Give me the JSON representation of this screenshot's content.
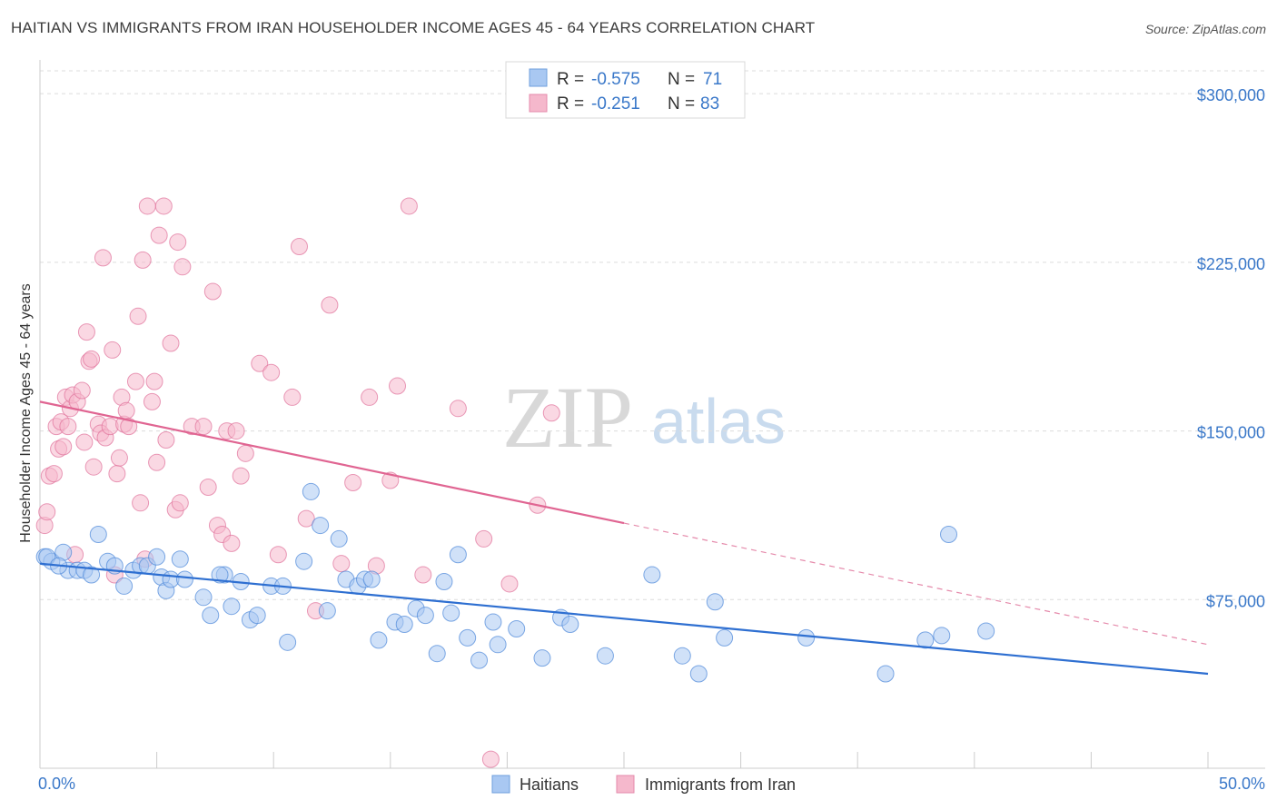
{
  "title": "HAITIAN VS IMMIGRANTS FROM IRAN HOUSEHOLDER INCOME AGES 45 - 64 YEARS CORRELATION CHART",
  "source": "Source: ZipAtlas.com",
  "watermark": {
    "zip": "ZIP",
    "atlas": "atlas"
  },
  "legend_top": {
    "rows": [
      {
        "r_label": "R = ",
        "r_value": "-0.575",
        "n_label": "N = ",
        "n_value": "71",
        "color": "#a9c8f2"
      },
      {
        "r_label": "R = ",
        "r_value": "-0.251",
        "n_label": "N = ",
        "n_value": "83",
        "color": "#f5b8cc"
      }
    ]
  },
  "legend_bottom": {
    "items": [
      {
        "label": "Haitians",
        "color": "#a9c8f2"
      },
      {
        "label": "Immigrants from Iran",
        "color": "#f5b8cc"
      }
    ]
  },
  "chart_data": {
    "type": "scatter",
    "title": "HAITIAN VS IMMIGRANTS FROM IRAN HOUSEHOLDER INCOME AGES 45 - 64 YEARS CORRELATION CHART",
    "xlabel": "",
    "ylabel": "Householder Income Ages 45 - 64 years",
    "xlim": [
      0,
      50
    ],
    "ylim": [
      0,
      315000
    ],
    "x_tick_labels": [
      "0.0%",
      "50.0%"
    ],
    "y_ticks": [
      75000,
      150000,
      225000,
      300000
    ],
    "y_tick_labels": [
      "$75,000",
      "$150,000",
      "$225,000",
      "$300,000"
    ],
    "grid": true,
    "legend_position": "top-center",
    "series": [
      {
        "name": "Haitians",
        "color": "#4a86d8",
        "fill": "#a9c8f2",
        "points": [
          [
            0.2,
            94000
          ],
          [
            0.5,
            92000
          ],
          [
            1.0,
            96000
          ],
          [
            1.2,
            88000
          ],
          [
            1.6,
            88000
          ],
          [
            1.9,
            88000
          ],
          [
            2.2,
            86000
          ],
          [
            2.5,
            104000
          ],
          [
            2.9,
            92000
          ],
          [
            3.2,
            90000
          ],
          [
            3.6,
            81000
          ],
          [
            4.0,
            88000
          ],
          [
            4.3,
            90000
          ],
          [
            4.6,
            90000
          ],
          [
            5.0,
            94000
          ],
          [
            5.2,
            85000
          ],
          [
            5.4,
            79000
          ],
          [
            5.6,
            84000
          ],
          [
            6.0,
            93000
          ],
          [
            6.2,
            84000
          ],
          [
            7.0,
            76000
          ],
          [
            7.3,
            68000
          ],
          [
            7.9,
            86000
          ],
          [
            8.2,
            72000
          ],
          [
            8.6,
            83000
          ],
          [
            9.0,
            66000
          ],
          [
            9.3,
            68000
          ],
          [
            9.9,
            81000
          ],
          [
            10.4,
            81000
          ],
          [
            10.6,
            56000
          ],
          [
            11.3,
            92000
          ],
          [
            11.6,
            123000
          ],
          [
            12.0,
            108000
          ],
          [
            12.3,
            70000
          ],
          [
            12.8,
            102000
          ],
          [
            13.1,
            84000
          ],
          [
            13.6,
            81000
          ],
          [
            13.9,
            84000
          ],
          [
            14.2,
            84000
          ],
          [
            14.5,
            57000
          ],
          [
            15.2,
            65000
          ],
          [
            15.6,
            64000
          ],
          [
            16.1,
            71000
          ],
          [
            16.5,
            68000
          ],
          [
            17.0,
            51000
          ],
          [
            17.3,
            83000
          ],
          [
            17.6,
            69000
          ],
          [
            17.9,
            95000
          ],
          [
            18.3,
            58000
          ],
          [
            18.8,
            48000
          ],
          [
            19.4,
            65000
          ],
          [
            19.6,
            55000
          ],
          [
            20.4,
            62000
          ],
          [
            21.5,
            49000
          ],
          [
            22.3,
            67000
          ],
          [
            22.7,
            64000
          ],
          [
            24.2,
            50000
          ],
          [
            26.2,
            86000
          ],
          [
            27.5,
            50000
          ],
          [
            28.2,
            42000
          ],
          [
            28.9,
            74000
          ],
          [
            29.3,
            58000
          ],
          [
            32.8,
            58000
          ],
          [
            36.2,
            42000
          ],
          [
            37.9,
            57000
          ],
          [
            38.6,
            59000
          ],
          [
            38.9,
            104000
          ],
          [
            40.5,
            61000
          ],
          [
            0.3,
            94000
          ],
          [
            0.8,
            90000
          ],
          [
            7.7,
            86000
          ]
        ],
        "trend": {
          "x": [
            0,
            50
          ],
          "y": [
            91000,
            42000
          ]
        }
      },
      {
        "name": "Immigrants from Iran",
        "color": "#e0709a",
        "fill": "#f5b8cc",
        "points": [
          [
            0.2,
            108000
          ],
          [
            0.3,
            114000
          ],
          [
            0.4,
            130000
          ],
          [
            0.6,
            131000
          ],
          [
            0.7,
            152000
          ],
          [
            0.8,
            142000
          ],
          [
            0.9,
            154000
          ],
          [
            1.0,
            143000
          ],
          [
            1.1,
            165000
          ],
          [
            1.2,
            152000
          ],
          [
            1.3,
            160000
          ],
          [
            1.4,
            166000
          ],
          [
            1.6,
            163000
          ],
          [
            1.8,
            168000
          ],
          [
            1.9,
            145000
          ],
          [
            2.0,
            194000
          ],
          [
            2.1,
            181000
          ],
          [
            2.2,
            182000
          ],
          [
            2.3,
            134000
          ],
          [
            2.5,
            153000
          ],
          [
            2.6,
            149000
          ],
          [
            2.7,
            227000
          ],
          [
            2.8,
            147000
          ],
          [
            3.0,
            152000
          ],
          [
            3.1,
            186000
          ],
          [
            3.3,
            131000
          ],
          [
            3.4,
            138000
          ],
          [
            3.5,
            165000
          ],
          [
            3.6,
            153000
          ],
          [
            3.7,
            159000
          ],
          [
            3.8,
            152000
          ],
          [
            4.1,
            172000
          ],
          [
            4.2,
            201000
          ],
          [
            4.3,
            118000
          ],
          [
            4.4,
            226000
          ],
          [
            4.5,
            93000
          ],
          [
            4.6,
            250000
          ],
          [
            4.8,
            163000
          ],
          [
            4.9,
            172000
          ],
          [
            5.0,
            136000
          ],
          [
            5.1,
            237000
          ],
          [
            5.3,
            250000
          ],
          [
            5.4,
            146000
          ],
          [
            5.6,
            189000
          ],
          [
            5.8,
            115000
          ],
          [
            5.9,
            234000
          ],
          [
            6.0,
            118000
          ],
          [
            6.1,
            223000
          ],
          [
            6.5,
            152000
          ],
          [
            7.0,
            152000
          ],
          [
            7.2,
            125000
          ],
          [
            7.4,
            212000
          ],
          [
            7.6,
            108000
          ],
          [
            7.8,
            104000
          ],
          [
            8.0,
            150000
          ],
          [
            8.2,
            100000
          ],
          [
            8.4,
            150000
          ],
          [
            8.6,
            130000
          ],
          [
            8.8,
            140000
          ],
          [
            9.4,
            180000
          ],
          [
            9.9,
            176000
          ],
          [
            10.2,
            95000
          ],
          [
            10.8,
            165000
          ],
          [
            11.1,
            232000
          ],
          [
            11.4,
            111000
          ],
          [
            11.8,
            70000
          ],
          [
            12.4,
            206000
          ],
          [
            12.9,
            91000
          ],
          [
            13.4,
            127000
          ],
          [
            14.1,
            165000
          ],
          [
            14.4,
            90000
          ],
          [
            15.0,
            128000
          ],
          [
            15.3,
            170000
          ],
          [
            15.8,
            250000
          ],
          [
            16.4,
            86000
          ],
          [
            17.9,
            160000
          ],
          [
            19.0,
            102000
          ],
          [
            19.3,
            4000
          ],
          [
            20.1,
            82000
          ],
          [
            21.3,
            117000
          ],
          [
            21.9,
            158000
          ],
          [
            1.5,
            95000
          ],
          [
            3.2,
            86000
          ]
        ],
        "trend": {
          "x": [
            0,
            25
          ],
          "y": [
            163000,
            109000
          ]
        },
        "trend_dashed": {
          "x": [
            25,
            50
          ],
          "y": [
            109000,
            55000
          ]
        }
      }
    ]
  }
}
